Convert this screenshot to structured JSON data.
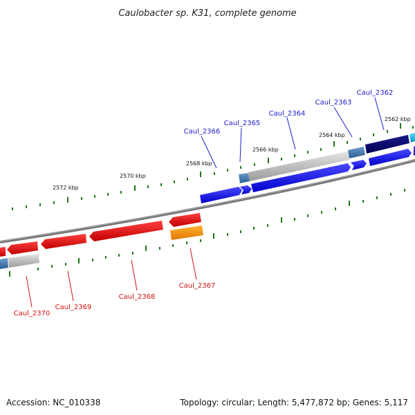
{
  "title": "Caulobacter sp. K31, complete genome",
  "footer": {
    "accession": "Accession: NC_010338",
    "topology": "Topology: circular; Length: 5,477,872 bp; Genes: 5,117"
  },
  "scale_labels": [
    "2572 kbp",
    "2570 kbp",
    "2568 kbp",
    "2566 kbp",
    "2564 kbp",
    "2562 kbp"
  ],
  "upper_genes": [
    "Caul_2366",
    "Caul_2365",
    "Caul_2364",
    "Caul_2363",
    "Caul_2362"
  ],
  "lower_genes": [
    "Caul_2370",
    "Caul_2369",
    "Caul_2368",
    "Caul_2367"
  ],
  "colors": {
    "forward_label": "#1a1acc",
    "reverse_label": "#cc1111",
    "backbone": "#808080",
    "tick": "#1b7a1b"
  }
}
